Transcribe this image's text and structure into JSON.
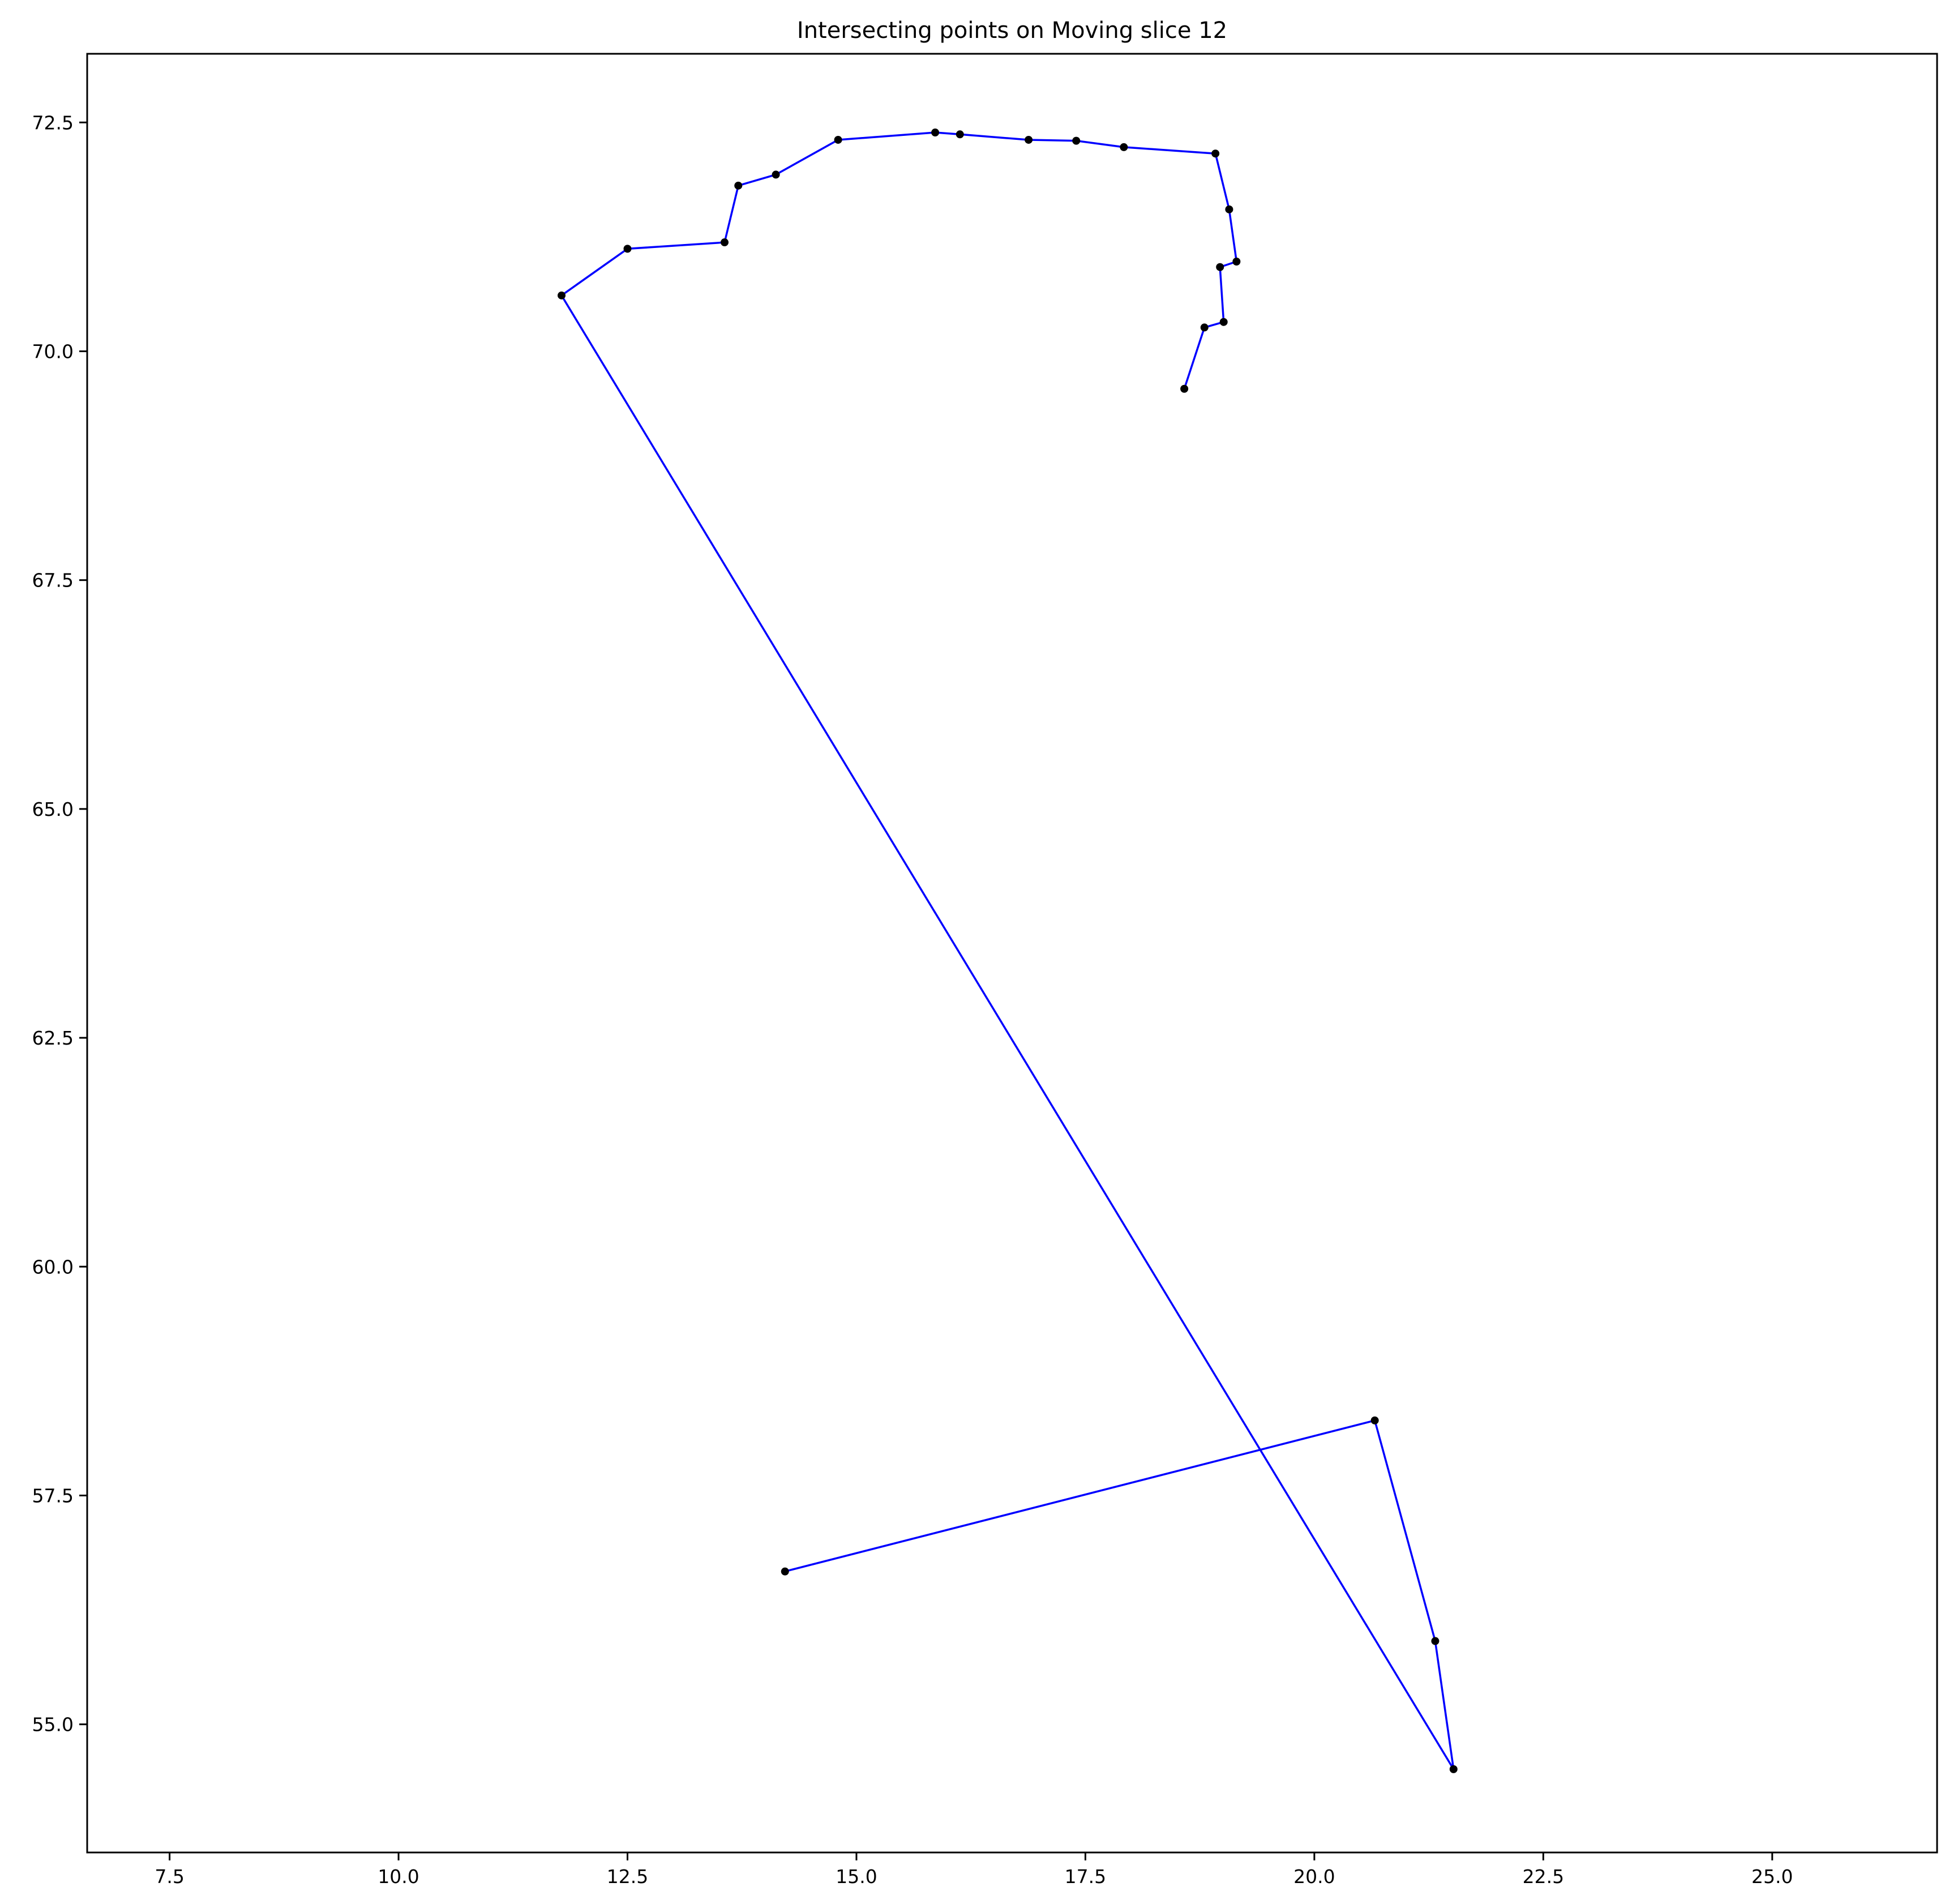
{
  "chart_data": {
    "type": "line",
    "title": "Intersecting points on Moving slice 12",
    "xlabel": "",
    "ylabel": "",
    "xlim": [
      6.6,
      26.8
    ],
    "ylim": [
      53.6,
      73.25
    ],
    "grid": false,
    "x_ticks": [
      7.5,
      10.0,
      12.5,
      15.0,
      17.5,
      20.0,
      22.5,
      25.0
    ],
    "y_ticks": [
      55.0,
      57.5,
      60.0,
      62.5,
      65.0,
      67.5,
      70.0,
      72.5
    ],
    "line_color": "#0000ff",
    "marker_color": "#000000",
    "series": [
      {
        "x": [
          18.58,
          18.8,
          19.01,
          18.97,
          19.15,
          19.07,
          18.92,
          17.92,
          17.4,
          16.88,
          16.13,
          15.86,
          14.8,
          14.12,
          13.71,
          13.56,
          12.5,
          11.78,
          21.52,
          21.32,
          20.66,
          14.22
        ],
        "y": [
          69.59,
          70.26,
          70.32,
          70.92,
          70.98,
          71.55,
          72.16,
          72.23,
          72.3,
          72.31,
          72.37,
          72.39,
          72.31,
          71.93,
          71.81,
          71.19,
          71.12,
          70.61,
          54.51,
          55.91,
          58.32,
          56.67
        ]
      }
    ]
  }
}
